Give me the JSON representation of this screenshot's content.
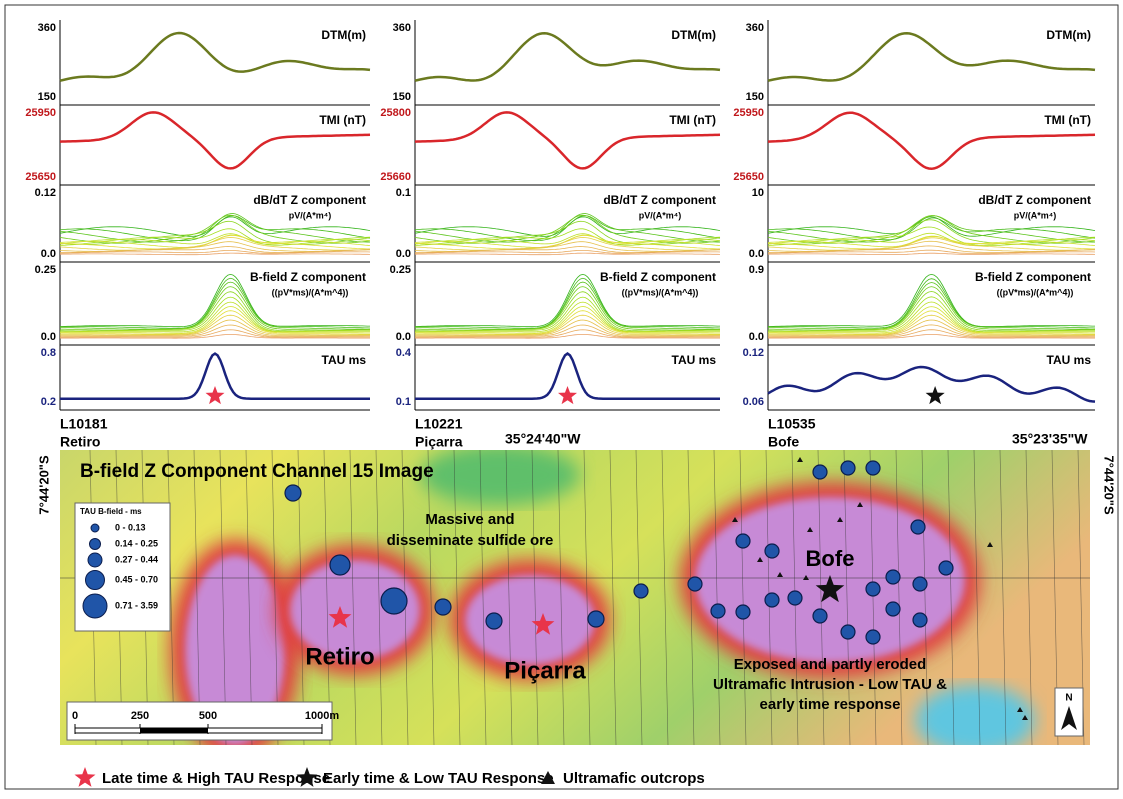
{
  "profiles": [
    {
      "line": "L10181",
      "name": "Retiro",
      "panels": [
        {
          "title": "DTM(m)",
          "top": "360",
          "bottom": "150"
        },
        {
          "title": "TMI (nT)",
          "top": "25950",
          "bottom": "25650"
        },
        {
          "title": "dB/dT Z component",
          "unit": "pV/(A*m⁴)",
          "top": "0.12",
          "bottom": "0.0"
        },
        {
          "title": "B-field Z component",
          "unit": "((pV*ms)/(A*m^4))",
          "top": "0.25",
          "bottom": "0.0"
        },
        {
          "title": "TAU ms",
          "top": "0.8",
          "bottom": "0.2"
        }
      ]
    },
    {
      "line": "L10221",
      "name": "Piçarra",
      "panels": [
        {
          "title": "DTM(m)",
          "top": "360",
          "bottom": "150"
        },
        {
          "title": "TMI (nT)",
          "top": "25800",
          "bottom": "25660"
        },
        {
          "title": "dB/dT Z component",
          "unit": "pV/(A*m⁴)",
          "top": "0.1",
          "bottom": "0.0"
        },
        {
          "title": "B-field Z component",
          "unit": "((pV*ms)/(A*m^4))",
          "top": "0.25",
          "bottom": "0.0"
        },
        {
          "title": "TAU ms",
          "top": "0.4",
          "bottom": "0.1"
        }
      ]
    },
    {
      "line": "L10535",
      "name": "Bofe",
      "panels": [
        {
          "title": "DTM(m)",
          "top": "360",
          "bottom": "150"
        },
        {
          "title": "TMI (nT)",
          "top": "25950",
          "bottom": "25650"
        },
        {
          "title": "dB/dT Z component",
          "unit": "pV/(A*m⁴)",
          "top": "10",
          "bottom": "0.0"
        },
        {
          "title": "B-field Z component",
          "unit": "((pV*ms)/(A*m^4))",
          "top": "0.9",
          "bottom": "0.0"
        },
        {
          "title": "TAU ms",
          "top": "0.12",
          "bottom": "0.06"
        }
      ]
    }
  ],
  "map": {
    "title": "B-field Z Component Channel 15 Image",
    "lon_left": "35°24'40\"W",
    "lon_right": "35°23'35\"W",
    "lat_left": "7°44'20\"S",
    "lat_right": "7°44'20\"S",
    "note": [
      "Massive and",
      "disseminate sulfide ore"
    ],
    "targets": [
      "Retiro",
      "Piçarra",
      "Bofe"
    ],
    "bofe_note": [
      "Exposed and partly eroded",
      "Ultramafic  Intrusion - Low TAU &",
      "early time response"
    ],
    "tau_legend": {
      "title": "TAU B-field - ms",
      "classes": [
        "0 - 0.13",
        "0.14 - 0.25",
        "0.27 - 0.44",
        "0.45 - 0.70",
        "0.71 - 3.59"
      ]
    },
    "scale": [
      "0",
      "250",
      "500",
      "1000m"
    ],
    "north": "N"
  },
  "legend": [
    "Late time & High TAU Response",
    "Early time & Low TAU Response",
    "Ultramafic outcrops"
  ]
}
